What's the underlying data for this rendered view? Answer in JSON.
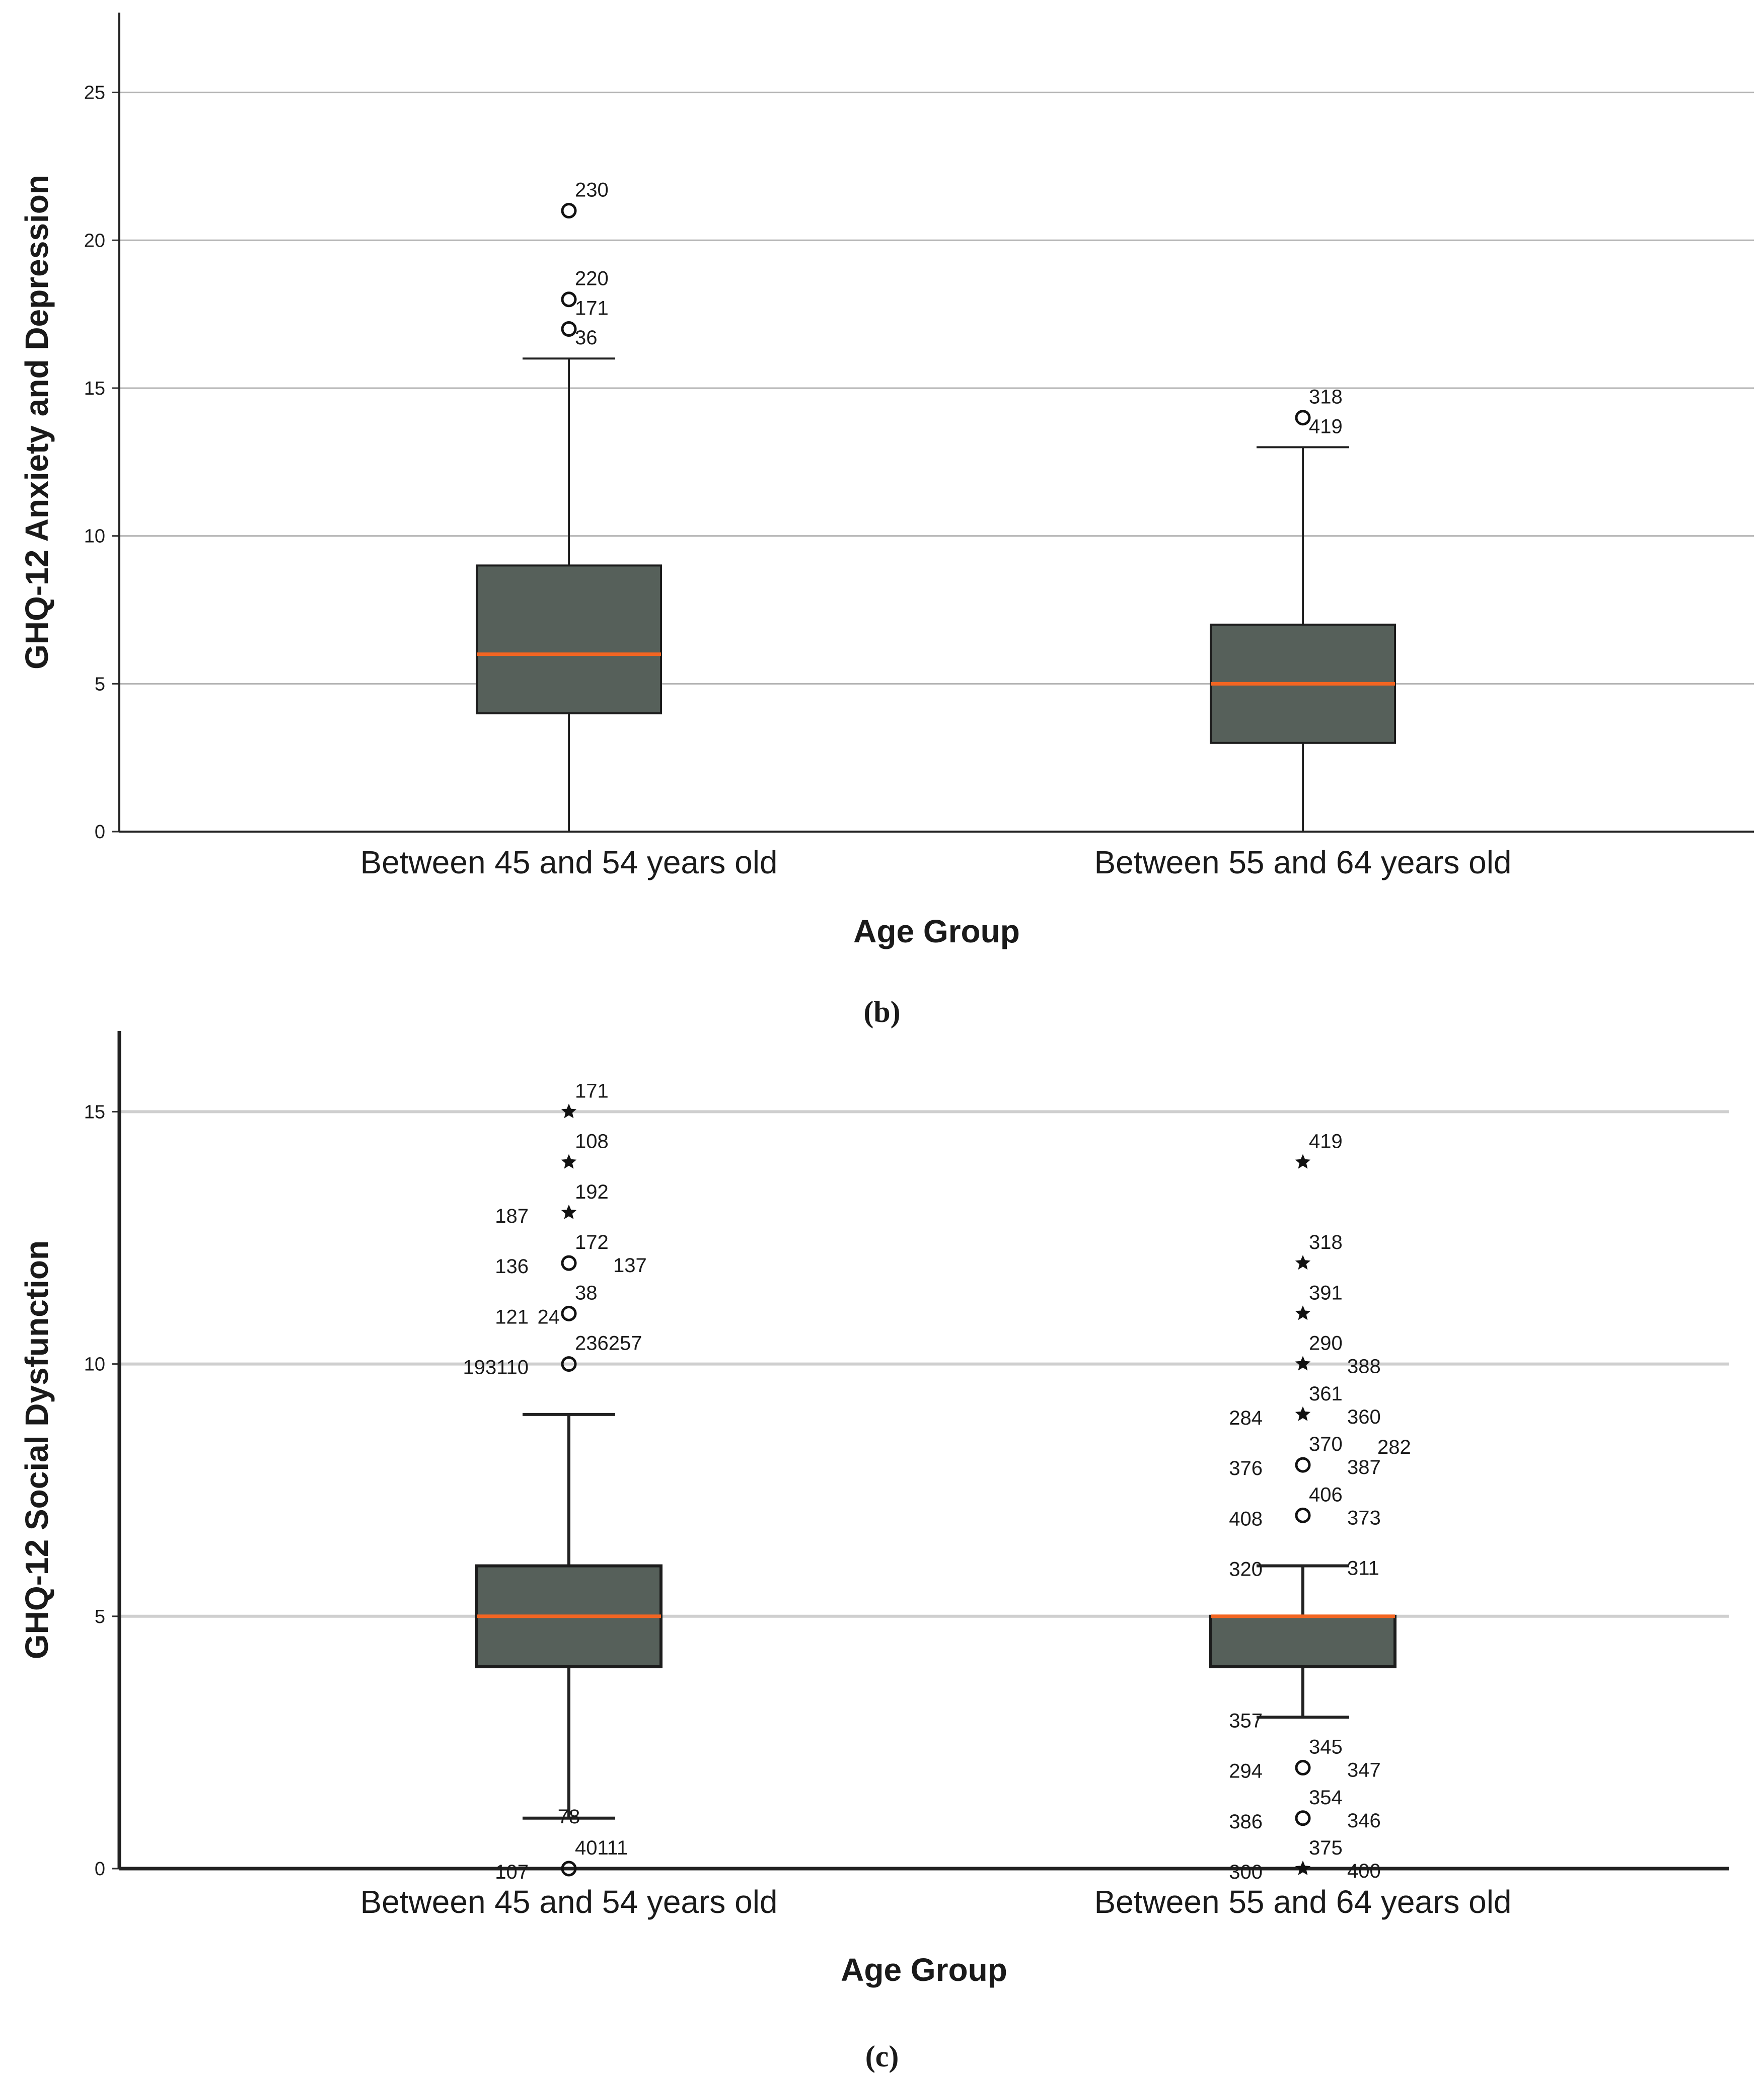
{
  "chart_data": [
    {
      "panel_label": "(b)",
      "type": "boxplot",
      "xlabel": "Age Group",
      "ylabel": "GHQ-12 Anxiety and Depression",
      "ylim": [
        0,
        27.7
      ],
      "yticks": [
        0,
        5,
        10,
        15,
        20,
        25
      ],
      "grid": "horizontal",
      "colors": {
        "box": "#56605a",
        "median": "#f26522",
        "grid": "#b4b4b4"
      },
      "categories": [
        "Between 45 and 54 years old",
        "Between 55 and 64 years old"
      ],
      "boxes": [
        {
          "category": "Between 45 and 54 years old",
          "whisker_low": 0,
          "q1": 4,
          "median": 6,
          "q3": 9,
          "whisker_high": 16,
          "outliers": [
            {
              "value": 21,
              "label": "230",
              "marker": "circle"
            },
            {
              "value": 18,
              "label": "220",
              "marker": "circle"
            },
            {
              "value": 17,
              "label": "171",
              "marker": "circle"
            },
            {
              "value": 16,
              "label": "36",
              "marker": "none"
            }
          ]
        },
        {
          "category": "Between 55 and 64 years old",
          "whisker_low": 0,
          "q1": 3,
          "median": 5,
          "q3": 7,
          "whisker_high": 13,
          "outliers": [
            {
              "value": 14,
              "label": "318",
              "marker": "circle"
            },
            {
              "value": 13,
              "label": "419",
              "marker": "none"
            }
          ]
        }
      ]
    },
    {
      "panel_label": "(c)",
      "type": "boxplot",
      "xlabel": "Age Group",
      "ylabel": "GHQ-12 Social Dysfunction",
      "ylim": [
        0,
        16.6
      ],
      "yticks": [
        0,
        5,
        10,
        15
      ],
      "grid": "horizontal",
      "colors": {
        "box": "#56605a",
        "median": "#f26522",
        "grid": "#cfcfcf"
      },
      "categories": [
        "Between 45 and 54 years old",
        "Between 55 and 64 years old"
      ],
      "boxes": [
        {
          "category": "Between 45 and 54 years old",
          "whisker_low": 1,
          "q1": 4,
          "median": 5,
          "q3": 6,
          "whisker_high": 9,
          "outliers": [
            {
              "value": 15,
              "label": "171",
              "marker": "star"
            },
            {
              "value": 14,
              "label": "108",
              "marker": "star"
            },
            {
              "value": 13,
              "label": "192",
              "marker": "star"
            },
            {
              "value": 12,
              "label": "172",
              "marker": "circle"
            },
            {
              "value": 11,
              "label": "38",
              "marker": "circle"
            },
            {
              "value": 10,
              "label": "236257",
              "marker": "circle"
            },
            {
              "value": 0,
              "label": "40111",
              "marker": "circle"
            }
          ],
          "side_labels": [
            {
              "value": 13,
              "label": "187",
              "side": "left"
            },
            {
              "value": 12,
              "label": "136",
              "side": "left"
            },
            {
              "value": 12,
              "label": "137",
              "side": "right"
            },
            {
              "value": 11,
              "label": "121",
              "side": "left"
            },
            {
              "value": 11,
              "label": "24",
              "side": "near-left"
            },
            {
              "value": 10,
              "label": "193110",
              "side": "left"
            },
            {
              "value": 1,
              "label": "78",
              "side": "center"
            },
            {
              "value": 0,
              "label": "107",
              "side": "left"
            }
          ]
        },
        {
          "category": "Between 55 and 64 years old",
          "whisker_low": 3,
          "q1": 4,
          "median": 5,
          "q3": 5,
          "whisker_high": 6,
          "outliers": [
            {
              "value": 14,
              "label": "419",
              "marker": "star"
            },
            {
              "value": 12,
              "label": "318",
              "marker": "star"
            },
            {
              "value": 11,
              "label": "391",
              "marker": "star"
            },
            {
              "value": 10,
              "label": "290",
              "marker": "star"
            },
            {
              "value": 9,
              "label": "361",
              "marker": "star"
            },
            {
              "value": 8,
              "label": "370",
              "marker": "circle"
            },
            {
              "value": 7,
              "label": "406",
              "marker": "circle"
            },
            {
              "value": 2,
              "label": "345",
              "marker": "circle"
            },
            {
              "value": 1,
              "label": "354",
              "marker": "circle"
            },
            {
              "value": 0,
              "label": "375",
              "marker": "star"
            }
          ],
          "side_labels": [
            {
              "value": 10,
              "label": "388",
              "side": "right"
            },
            {
              "value": 9,
              "label": "284",
              "side": "left"
            },
            {
              "value": 9,
              "label": "360",
              "side": "right"
            },
            {
              "value": 8,
              "label": "376",
              "side": "left"
            },
            {
              "value": 8,
              "label": "387",
              "side": "right"
            },
            {
              "value": 8,
              "label": "282",
              "side": "right"
            },
            {
              "value": 7,
              "label": "373",
              "side": "right"
            },
            {
              "value": 7,
              "label": "408",
              "side": "left"
            },
            {
              "value": 6,
              "label": "311",
              "side": "right"
            },
            {
              "value": 6,
              "label": "320",
              "side": "left"
            },
            {
              "value": 3,
              "label": "357",
              "side": "left"
            },
            {
              "value": 2,
              "label": "294",
              "side": "left"
            },
            {
              "value": 2,
              "label": "347",
              "side": "right"
            },
            {
              "value": 1,
              "label": "386",
              "side": "left"
            },
            {
              "value": 1,
              "label": "346",
              "side": "right"
            },
            {
              "value": 0,
              "label": "300",
              "side": "left"
            },
            {
              "value": 0,
              "label": "400",
              "side": "right"
            }
          ]
        }
      ]
    }
  ]
}
